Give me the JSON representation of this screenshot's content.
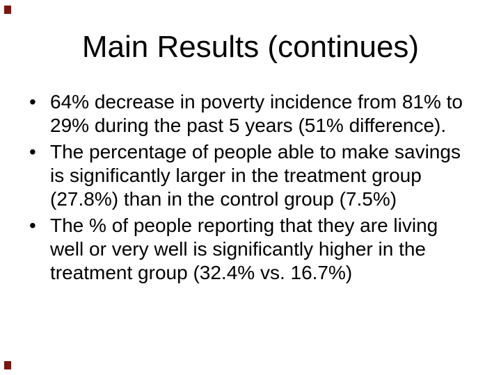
{
  "slide": {
    "title": "Main Results (continues)",
    "bullet_char": "•",
    "text_color": "#000000",
    "background_color": "#ffffff",
    "corner_mark_color": "#7a150f",
    "bullets": [
      {
        "lines": [
          "64% decrease in poverty incidence from 81% to",
          "29% during the past 5 years (51% difference)."
        ]
      },
      {
        "lines": [
          "The percentage of people able to make savings",
          "is significantly larger in the treatment group",
          "(27.8%) than in the control group (7.5%)"
        ]
      },
      {
        "lines": [
          "The % of people reporting that they are living",
          "well or very well is significantly higher in the",
          "treatment group (32.4% vs. 16.7%)"
        ]
      }
    ]
  }
}
